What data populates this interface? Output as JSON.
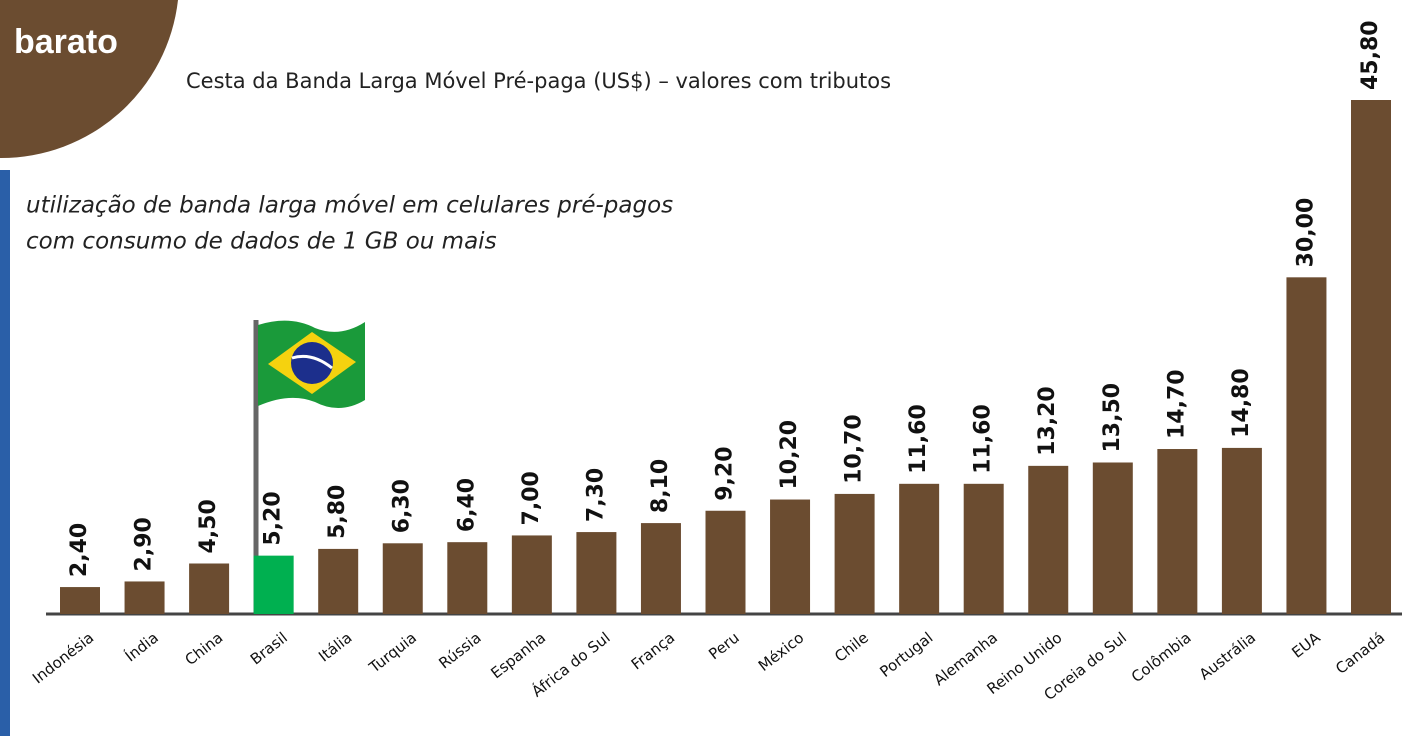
{
  "chart_data": {
    "type": "bar",
    "header": "barato",
    "title": "Cesta da Banda Larga Móvel Pré-paga (US$) – valores com tributos",
    "subtitle": [
      "utilização de banda larga móvel em celulares pré-pagos",
      "com consumo de dados de 1 GB ou mais"
    ],
    "categories": [
      "Indonésia",
      "Índia",
      "China",
      "Brasil",
      "Itália",
      "Turquia",
      "Rússia",
      "Espanha",
      "África do Sul",
      "França",
      "Peru",
      "México",
      "Chile",
      "Portugal",
      "Alemanha",
      "Reino Unido",
      "Coreia do Sul",
      "Colômbia",
      "Austrália",
      "EUA",
      "Canadá"
    ],
    "values": [
      2.4,
      2.9,
      4.5,
      5.2,
      5.8,
      6.3,
      6.4,
      7.0,
      7.3,
      8.1,
      9.2,
      10.2,
      10.7,
      11.6,
      11.6,
      13.2,
      13.5,
      14.7,
      14.8,
      30.0,
      45.8
    ],
    "value_labels": [
      "2,40",
      "2,90",
      "4,50",
      "5,20",
      "5,80",
      "6,30",
      "6,40",
      "7,00",
      "7,30",
      "8,10",
      "9,20",
      "10,20",
      "10,70",
      "11,60",
      "11,60",
      "13,20",
      "13,50",
      "14,70",
      "14,80",
      "30,00",
      "45,80"
    ],
    "colors": [
      "#6b4c30",
      "#6b4c30",
      "#6b4c30",
      "#00b050",
      "#6b4c30",
      "#6b4c30",
      "#6b4c30",
      "#6b4c30",
      "#6b4c30",
      "#6b4c30",
      "#6b4c30",
      "#6b4c30",
      "#6b4c30",
      "#6b4c30",
      "#6b4c30",
      "#6b4c30",
      "#6b4c30",
      "#6b4c30",
      "#6b4c30",
      "#6b4c30",
      "#6b4c30"
    ]
  }
}
